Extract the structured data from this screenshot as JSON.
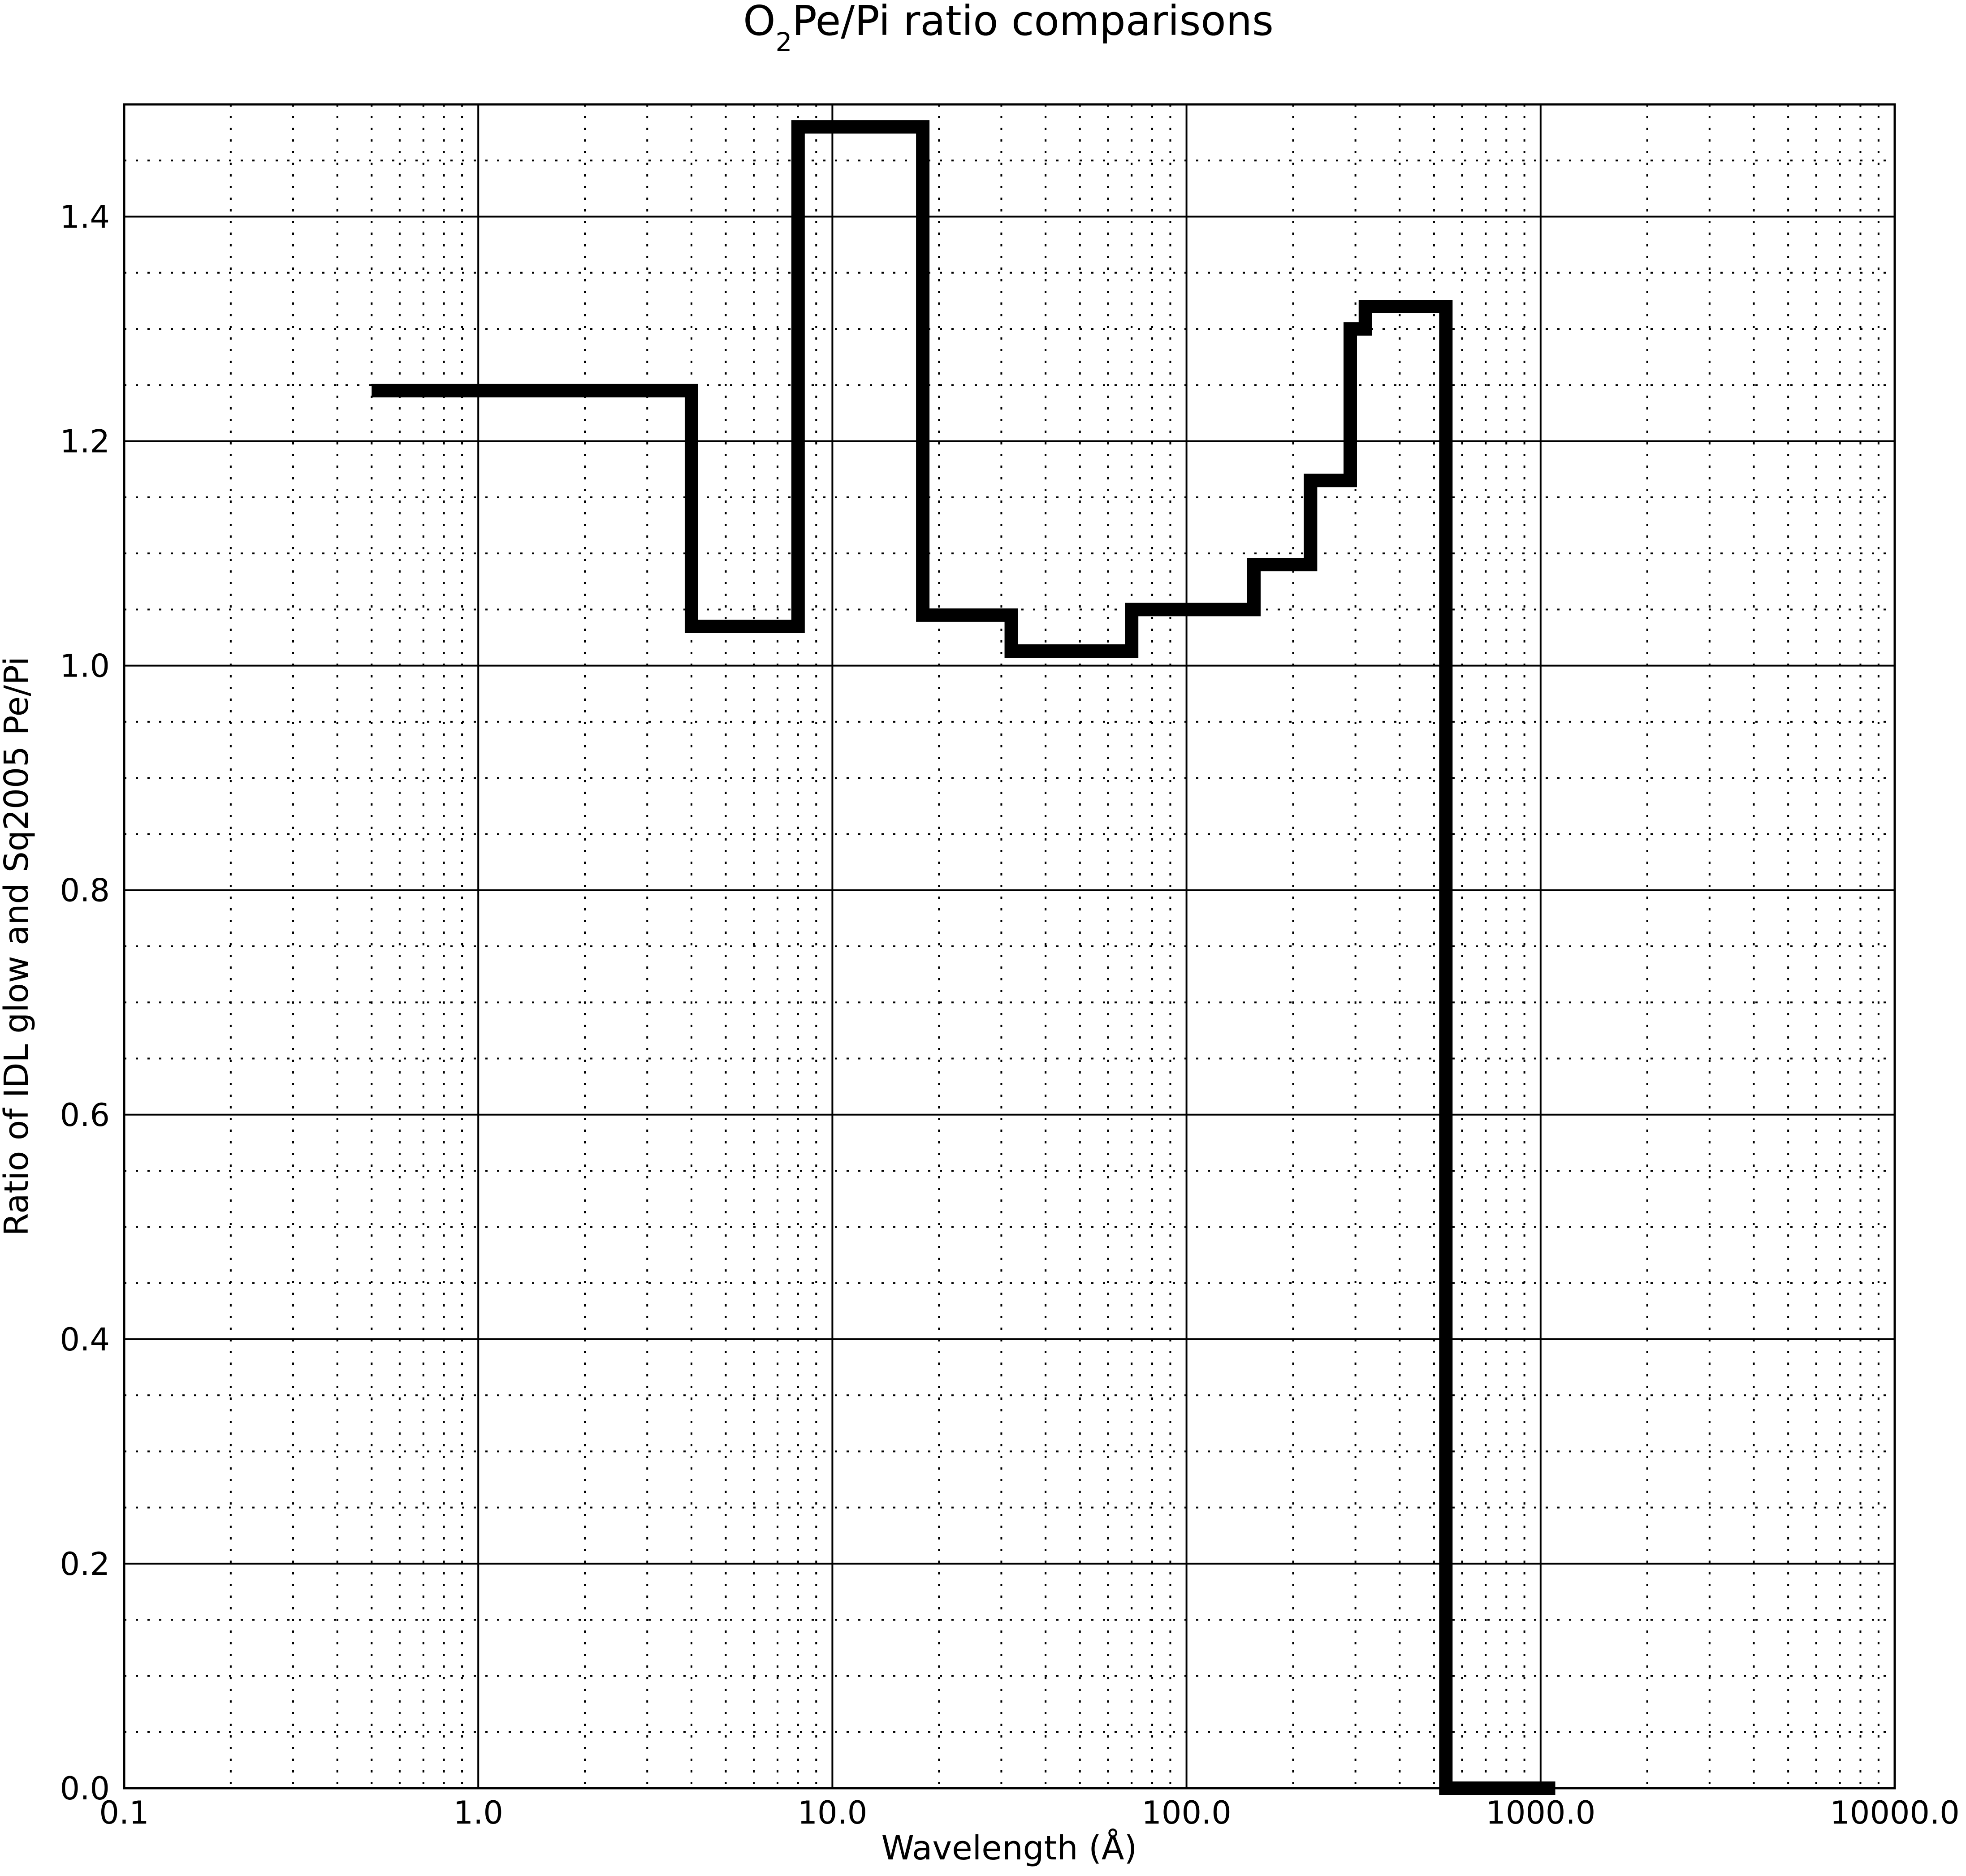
{
  "chart_data": {
    "type": "line",
    "title": {
      "main": "O",
      "subscript": "2",
      "rest": "Pe/Pi ratio comparisons"
    },
    "xlabel": "Wavelength (Å)",
    "ylabel": "Ratio of IDL glow and Sq2005 Pe/Pi",
    "x_scale": "log",
    "xlim": [
      0.1,
      10000.0
    ],
    "ylim": [
      0.0,
      1.5
    ],
    "grid": true,
    "x_ticks": [
      0.1,
      1.0,
      10.0,
      100.0,
      1000.0,
      10000.0
    ],
    "x_tick_labels": [
      "0.1",
      "1.0",
      "10.0",
      "100.0",
      "1000.0",
      "10000.0"
    ],
    "y_ticks": [
      0.0,
      0.2,
      0.4,
      0.6,
      0.8,
      1.0,
      1.2,
      1.4
    ],
    "y_tick_labels": [
      "0.0",
      "0.2",
      "0.4",
      "0.6",
      "0.8",
      "1.0",
      "1.2",
      "1.4"
    ],
    "line_color": "#000000",
    "series": [
      {
        "style": "steps",
        "bins": [
          {
            "x0": 0.5,
            "x1": 4.0,
            "y": 1.245
          },
          {
            "x0": 4.0,
            "x1": 8.0,
            "y": 1.035
          },
          {
            "x0": 8.0,
            "x1": 18.0,
            "y": 1.48
          },
          {
            "x0": 18.0,
            "x1": 32.0,
            "y": 1.045
          },
          {
            "x0": 32.0,
            "x1": 70.0,
            "y": 1.013
          },
          {
            "x0": 70.0,
            "x1": 155.0,
            "y": 1.05
          },
          {
            "x0": 155.0,
            "x1": 224.0,
            "y": 1.09
          },
          {
            "x0": 224.0,
            "x1": 290.0,
            "y": 1.165
          },
          {
            "x0": 290.0,
            "x1": 320.0,
            "y": 1.3
          },
          {
            "x0": 320.0,
            "x1": 540.0,
            "y": 1.32
          },
          {
            "x0": 540.0,
            "x1": 1100.0,
            "y": 0.0
          }
        ]
      }
    ]
  }
}
